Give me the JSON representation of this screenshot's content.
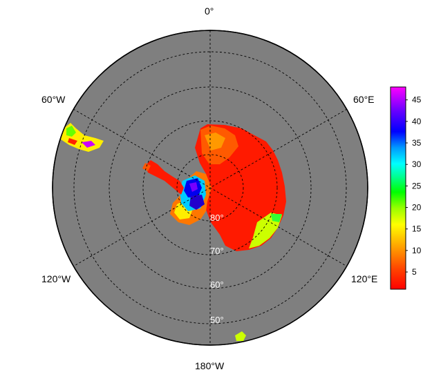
{
  "map": {
    "projection": "south-polar-stereographic",
    "ocean_color": "#7f7f7f",
    "graticule_style": "dashed",
    "longitude_labels": {
      "top": "0°",
      "upper_left": "60°W",
      "upper_right": "60°E",
      "lower_left": "120°W",
      "lower_right": "120°E",
      "bottom": "180°W"
    },
    "latitude_labels": [
      "80°",
      "70°",
      "60°",
      "50°"
    ]
  },
  "colorbar": {
    "min": 1,
    "max": 48,
    "ticks": [
      "5",
      "10",
      "15",
      "20",
      "25",
      "30",
      "35",
      "40",
      "45"
    ],
    "tick_values": [
      5,
      10,
      15,
      20,
      25,
      30,
      35,
      40,
      45
    ],
    "colors": [
      "#ff0000",
      "#ff6600",
      "#ffcc00",
      "#ffff00",
      "#99ff00",
      "#00ff00",
      "#00ffcc",
      "#00ccff",
      "#0066ff",
      "#0000ff",
      "#6600ff",
      "#9900ff",
      "#ff00ff"
    ]
  }
}
